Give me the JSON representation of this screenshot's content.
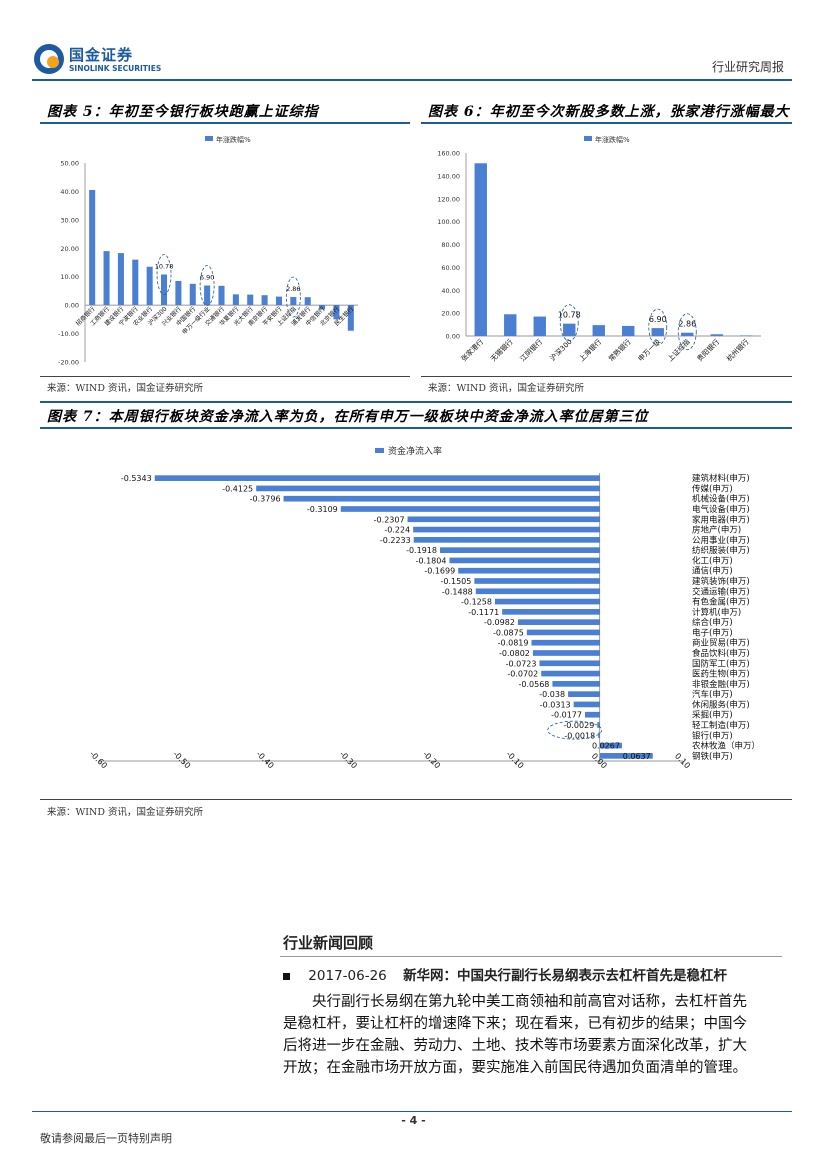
{
  "header": {
    "logo_cn": "国金证券",
    "logo_en": "SINOLINK SECURITIES",
    "report_type": "行业研究周报",
    "brand_color": "#1d5aa0"
  },
  "chart5": {
    "title": "图表 5：年初至今银行板块跑赢上证综指",
    "source": "来源：WIND 资讯，国金证券研究所",
    "chart_data": {
      "type": "bar",
      "legend": "年涨跌幅%",
      "ylim": [
        -20,
        50
      ],
      "yticks": [
        "50.00",
        "40.00",
        "30.00",
        "20.00",
        "10.00",
        "0.00",
        "-10.00",
        "-20.00"
      ],
      "categories": [
        "招商银行",
        "工商银行",
        "建设银行",
        "宁波银行",
        "农业银行",
        "沪深300",
        "兴业银行",
        "中国银行",
        "申万一级行业",
        "交通银行",
        "华夏银行",
        "光大银行",
        "南京银行",
        "平安银行",
        "上证综指",
        "浦发银行",
        "中信银行",
        "北京银行",
        "民生银行"
      ],
      "values": [
        40.5,
        19.0,
        18.3,
        16.0,
        13.5,
        10.78,
        8.5,
        7.5,
        6.9,
        6.8,
        3.8,
        3.7,
        3.5,
        3.0,
        2.86,
        2.8,
        -1.5,
        -5.0,
        -9.0
      ],
      "annotations": [
        "10.78",
        "6.90",
        "2.86"
      ],
      "color": "#4a7fd4"
    }
  },
  "chart6": {
    "title": "图表 6：年初至今次新股多数上涨，张家港行涨幅最大",
    "source": "来源：WIND 资讯，国金证券研究所",
    "chart_data": {
      "type": "bar",
      "legend": "年涨跌幅%",
      "ylim": [
        0,
        160
      ],
      "yticks": [
        "160.00",
        "140.00",
        "120.00",
        "100.00",
        "80.00",
        "60.00",
        "40.00",
        "20.00",
        "0.00"
      ],
      "categories": [
        "张家港行",
        "无锡银行",
        "江阴银行",
        "沪深300",
        "上海银行",
        "常熟银行",
        "申万一级",
        "上证综指",
        "贵阳银行",
        "杭州银行"
      ],
      "values": [
        151.0,
        19.0,
        17.0,
        10.78,
        9.5,
        8.8,
        6.9,
        2.86,
        1.5,
        0.5
      ],
      "annotations": [
        "10.78",
        "6.90",
        "2.86"
      ],
      "color": "#4a7fd4"
    }
  },
  "chart7": {
    "title": "图表 7：本周银行板块资金净流入率为负，在所有申万一级板块中资金净流入率位居第三位",
    "source": "来源：WIND 资讯，国金证券研究所",
    "chart_data": {
      "type": "bar",
      "orientation": "horizontal",
      "legend": "资金净流入率",
      "xlim": [
        -0.6,
        0.1
      ],
      "xticks": [
        "-0.60",
        "-0.50",
        "-0.40",
        "-0.30",
        "-0.20",
        "-0.10",
        "0.00",
        "0.10"
      ],
      "categories": [
        "建筑材料(申万)",
        "传媒(申万)",
        "机械设备(申万)",
        "电气设备(申万)",
        "家用电器(申万)",
        "房地产(申万)",
        "公用事业(申万)",
        "纺织服装(申万)",
        "化工(申万)",
        "通信(申万)",
        "建筑装饰(申万)",
        "交通运输(申万)",
        "有色金属(申万)",
        "计算机(申万)",
        "综合(申万)",
        "电子(申万)",
        "商业贸易(申万)",
        "食品饮料(申万)",
        "国防军工(申万)",
        "医药生物(申万)",
        "非银金融(申万)",
        "汽车(申万)",
        "休闲服务(申万)",
        "采掘(申万)",
        "轻工制造(申万)",
        "银行(申万)",
        "农林牧渔（申万）",
        "钢铁(申万)"
      ],
      "values": [
        -0.5343,
        -0.4125,
        -0.3796,
        -0.3109,
        -0.2307,
        -0.224,
        -0.2233,
        -0.1918,
        -0.1804,
        -0.1699,
        -0.1505,
        -0.1488,
        -0.1258,
        -0.1171,
        -0.0982,
        -0.0875,
        -0.0819,
        -0.0802,
        -0.0723,
        -0.0702,
        -0.0568,
        -0.038,
        -0.0313,
        -0.0177,
        -0.0029,
        -0.0018,
        0.0267,
        0.0637
      ],
      "labels": [
        "-0.5343",
        "-0.4125",
        "-0.3796",
        "-0.3109",
        "-0.2307",
        "-0.224",
        "-0.2233",
        "-0.1918",
        "-0.1804",
        "-0.1699",
        "-0.1505",
        "-0.1488",
        "-0.1258",
        "-0.1171",
        "-0.0982",
        "-0.0875",
        "-0.0819",
        "-0.0802",
        "-0.0723",
        "-0.0702",
        "-0.0568",
        "-0.038",
        "-0.0313",
        "-0.0177",
        "-0.0029",
        "-0.0018",
        "0.0267",
        "0.0637"
      ],
      "color": "#4a7fd4"
    }
  },
  "news": {
    "section_title": "行业新闻回顾",
    "items": [
      {
        "date": "2017-06-26",
        "headline": "新华网：中国央行副行长易纲表示去杠杆首先是稳杠杆",
        "lines": [
          "央行副行长易纲在第九轮中美工商领袖和前高官对话称，去杠杆首先",
          "是稳杠杆，要让杠杆的增速降下来；现在看来，已有初步的结果；中国今",
          "后将进一步在金融、劳动力、土地、技术等市场要素方面深化改革，扩大",
          "开放；在金融市场开放方面，要实施准入前国民待遇加负面清单的管理。"
        ]
      }
    ]
  },
  "footer": {
    "page_number": "- 4 -",
    "disclaimer": "敬请参阅最后一页特别声明"
  }
}
